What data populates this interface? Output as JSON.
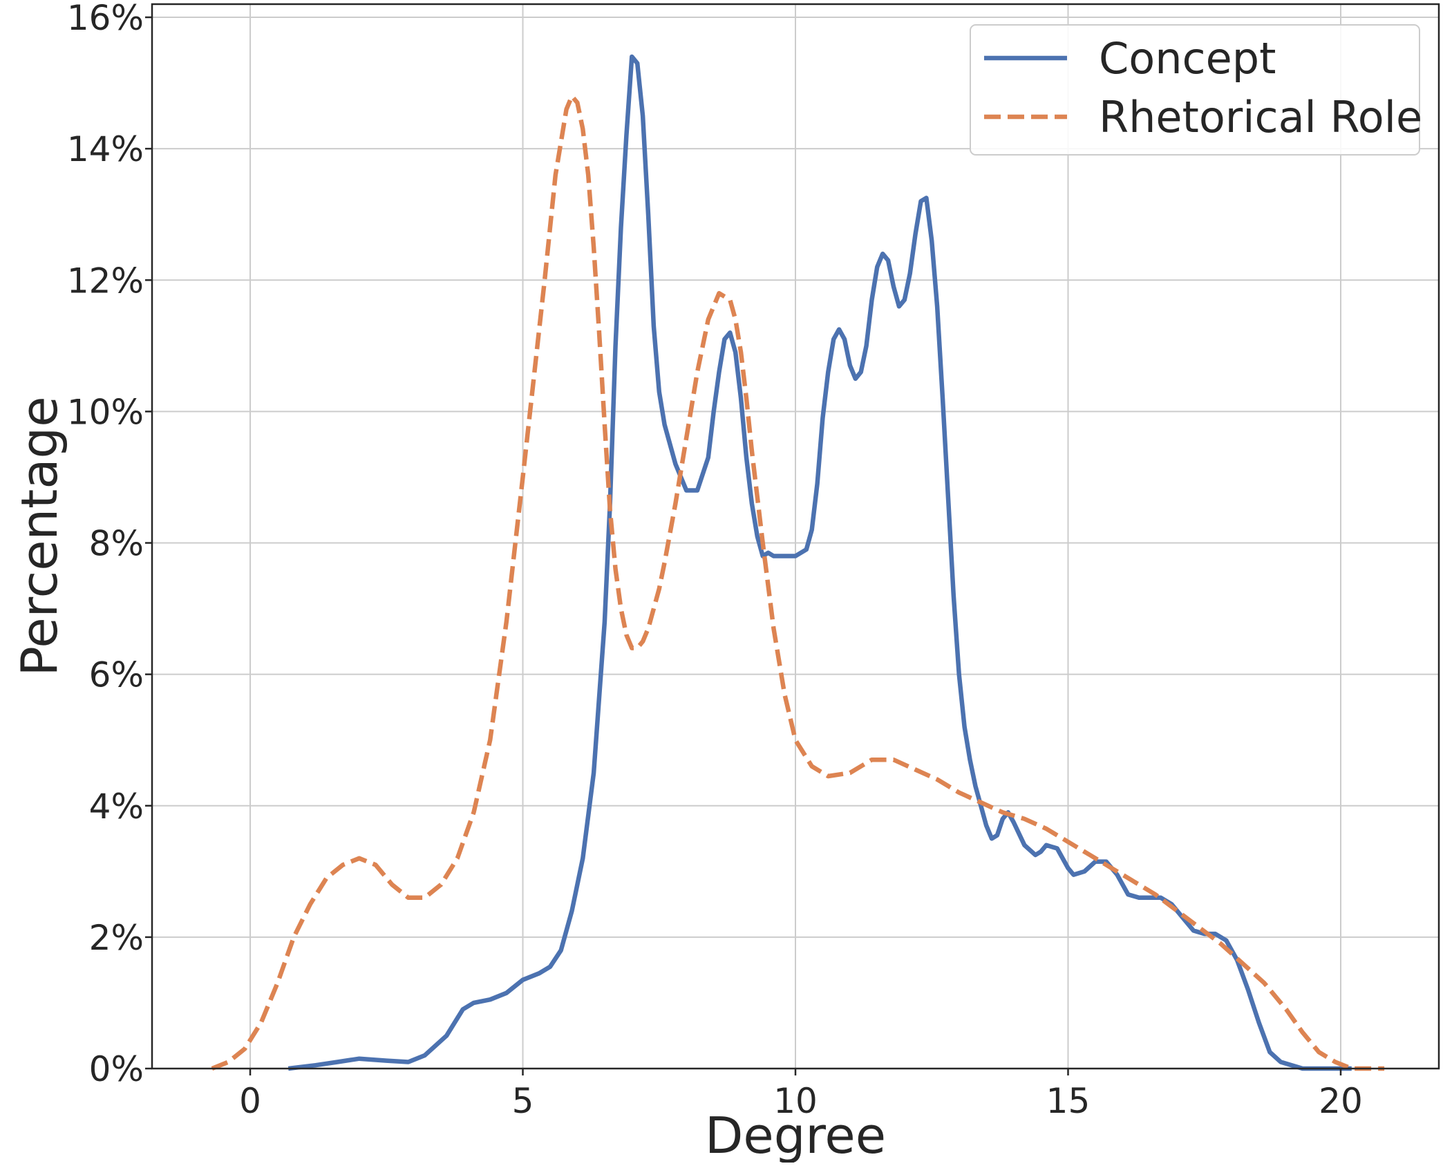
{
  "chart_data": {
    "type": "line",
    "xlabel": "Degree",
    "ylabel": "Percentage",
    "xlim": [
      -1.8,
      21.8
    ],
    "ylim": [
      0,
      16.2
    ],
    "x_ticks": [
      0,
      5,
      10,
      15,
      20
    ],
    "x_tick_labels": [
      "0",
      "5",
      "10",
      "15",
      "20"
    ],
    "y_ticks": [
      0,
      2,
      4,
      6,
      8,
      10,
      12,
      14,
      16
    ],
    "y_tick_labels": [
      "0%",
      "2%",
      "4%",
      "6%",
      "8%",
      "10%",
      "12%",
      "14%",
      "16%"
    ],
    "grid": true,
    "legend_position": "top-right",
    "series": [
      {
        "name": "Concept",
        "color": "#4c72b0",
        "style": "solid",
        "x": [
          0.7,
          1.2,
          1.6,
          2.0,
          2.5,
          2.9,
          3.2,
          3.6,
          3.9,
          4.1,
          4.4,
          4.7,
          5.0,
          5.3,
          5.5,
          5.7,
          5.9,
          6.1,
          6.3,
          6.5,
          6.6,
          6.7,
          6.8,
          6.9,
          7.0,
          7.1,
          7.2,
          7.3,
          7.4,
          7.5,
          7.6,
          7.8,
          8.0,
          8.2,
          8.4,
          8.5,
          8.6,
          8.7,
          8.8,
          8.9,
          9.0,
          9.1,
          9.2,
          9.3,
          9.4,
          9.5,
          9.6,
          9.8,
          10.0,
          10.2,
          10.3,
          10.4,
          10.5,
          10.6,
          10.7,
          10.8,
          10.9,
          11.0,
          11.1,
          11.2,
          11.3,
          11.4,
          11.5,
          11.6,
          11.7,
          11.8,
          11.9,
          12.0,
          12.1,
          12.2,
          12.3,
          12.4,
          12.5,
          12.6,
          12.7,
          12.8,
          12.9,
          13.0,
          13.1,
          13.2,
          13.3,
          13.4,
          13.5,
          13.6,
          13.7,
          13.8,
          13.9,
          14.0,
          14.2,
          14.4,
          14.5,
          14.6,
          14.8,
          15.0,
          15.1,
          15.3,
          15.5,
          15.7,
          15.9,
          16.1,
          16.3,
          16.5,
          16.7,
          16.9,
          17.1,
          17.3,
          17.5,
          17.7,
          17.9,
          18.1,
          18.3,
          18.5,
          18.7,
          18.9,
          19.1,
          19.3,
          19.5,
          19.7,
          19.9,
          20.1,
          20.2
        ],
        "y": [
          0.0,
          0.05,
          0.1,
          0.15,
          0.12,
          0.1,
          0.2,
          0.5,
          0.9,
          1.0,
          1.05,
          1.15,
          1.35,
          1.45,
          1.55,
          1.8,
          2.4,
          3.2,
          4.5,
          6.8,
          8.6,
          11.0,
          12.8,
          14.2,
          15.4,
          15.3,
          14.5,
          13.0,
          11.3,
          10.3,
          9.8,
          9.2,
          8.8,
          8.8,
          9.3,
          10.0,
          10.6,
          11.1,
          11.2,
          10.9,
          10.2,
          9.3,
          8.6,
          8.1,
          7.8,
          7.85,
          7.8,
          7.8,
          7.8,
          7.9,
          8.2,
          8.9,
          9.9,
          10.6,
          11.1,
          11.25,
          11.1,
          10.7,
          10.5,
          10.6,
          11.0,
          11.7,
          12.2,
          12.4,
          12.3,
          11.9,
          11.6,
          11.7,
          12.1,
          12.7,
          13.2,
          13.25,
          12.6,
          11.6,
          10.2,
          8.7,
          7.2,
          6.0,
          5.2,
          4.7,
          4.3,
          4.0,
          3.7,
          3.5,
          3.55,
          3.8,
          3.9,
          3.75,
          3.4,
          3.25,
          3.3,
          3.4,
          3.35,
          3.05,
          2.95,
          3.0,
          3.15,
          3.15,
          2.95,
          2.65,
          2.6,
          2.6,
          2.6,
          2.5,
          2.3,
          2.1,
          2.05,
          2.05,
          1.95,
          1.65,
          1.2,
          0.7,
          0.25,
          0.1,
          0.05,
          0.0,
          0.0,
          0.0,
          0.0,
          0.0,
          0.0
        ]
      },
      {
        "name": "Rhetorical Role",
        "color": "#dd8452",
        "style": "dashed",
        "x": [
          -0.7,
          -0.4,
          -0.1,
          0.2,
          0.5,
          0.8,
          1.1,
          1.4,
          1.7,
          2.0,
          2.3,
          2.6,
          2.9,
          3.2,
          3.5,
          3.8,
          4.1,
          4.4,
          4.7,
          5.0,
          5.2,
          5.4,
          5.6,
          5.8,
          5.9,
          6.0,
          6.1,
          6.2,
          6.3,
          6.4,
          6.5,
          6.6,
          6.7,
          6.8,
          6.9,
          7.0,
          7.1,
          7.2,
          7.3,
          7.4,
          7.5,
          7.6,
          7.8,
          8.0,
          8.2,
          8.4,
          8.6,
          8.8,
          8.9,
          9.0,
          9.1,
          9.2,
          9.4,
          9.6,
          9.8,
          10.0,
          10.3,
          10.6,
          11.0,
          11.4,
          11.8,
          12.2,
          12.6,
          13.0,
          13.4,
          13.8,
          14.2,
          14.6,
          15.0,
          15.4,
          15.8,
          16.2,
          16.6,
          17.0,
          17.4,
          17.8,
          18.2,
          18.6,
          19.0,
          19.3,
          19.6,
          19.9,
          20.2,
          20.5,
          20.8
        ],
        "y": [
          0.0,
          0.1,
          0.3,
          0.7,
          1.3,
          2.0,
          2.5,
          2.9,
          3.1,
          3.2,
          3.1,
          2.8,
          2.6,
          2.6,
          2.8,
          3.2,
          3.9,
          5.0,
          6.8,
          9.0,
          10.5,
          12.0,
          13.6,
          14.6,
          14.8,
          14.7,
          14.3,
          13.6,
          12.5,
          11.2,
          9.8,
          8.5,
          7.6,
          7.0,
          6.6,
          6.4,
          6.4,
          6.5,
          6.7,
          7.0,
          7.3,
          7.7,
          8.6,
          9.6,
          10.6,
          11.4,
          11.8,
          11.7,
          11.4,
          10.9,
          10.2,
          9.4,
          8.0,
          6.7,
          5.7,
          5.0,
          4.6,
          4.45,
          4.5,
          4.7,
          4.7,
          4.55,
          4.4,
          4.2,
          4.05,
          3.9,
          3.8,
          3.65,
          3.45,
          3.25,
          3.05,
          2.85,
          2.65,
          2.4,
          2.15,
          1.9,
          1.6,
          1.3,
          0.9,
          0.55,
          0.25,
          0.1,
          0.0,
          0.0,
          0.0
        ]
      }
    ]
  }
}
